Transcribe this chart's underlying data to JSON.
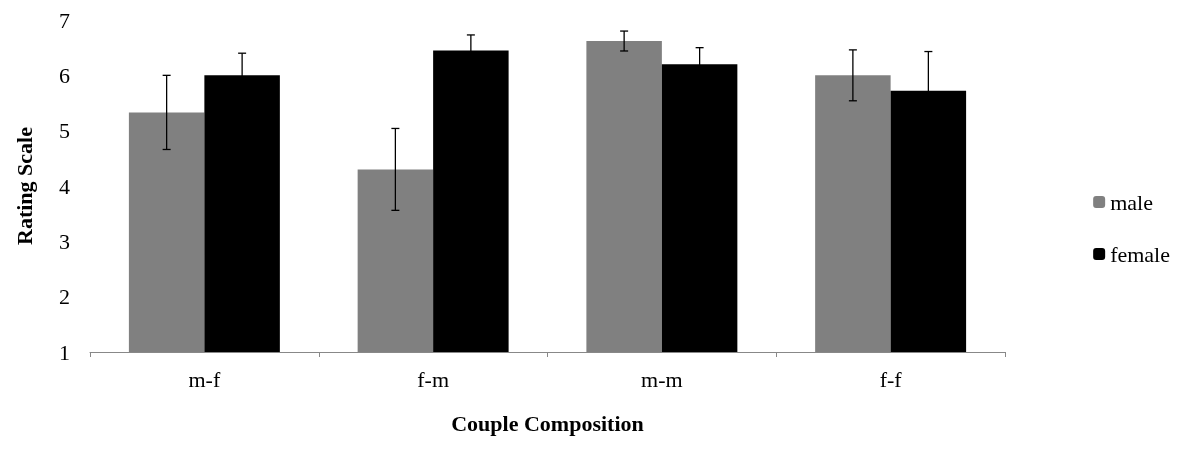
{
  "chart_data": {
    "type": "bar",
    "xlabel": "Couple Composition",
    "ylabel": "Rating Scale",
    "categories": [
      "m-f",
      "f-m",
      "m-m",
      "f-f"
    ],
    "series": [
      {
        "name": "male",
        "color": "#808080",
        "values": [
          5.33,
          4.3,
          6.62,
          6.0
        ],
        "errors": [
          0.67,
          0.74,
          0.18,
          0.46
        ]
      },
      {
        "name": "female",
        "color": "#000000",
        "values": [
          6.0,
          6.45,
          6.2,
          5.72
        ],
        "errors": [
          0.4,
          0.28,
          0.3,
          0.71
        ]
      }
    ],
    "ylim": [
      1,
      7
    ],
    "yticks": [
      1,
      2,
      3,
      4,
      5,
      6,
      7
    ],
    "grid": false,
    "legend": "right"
  }
}
